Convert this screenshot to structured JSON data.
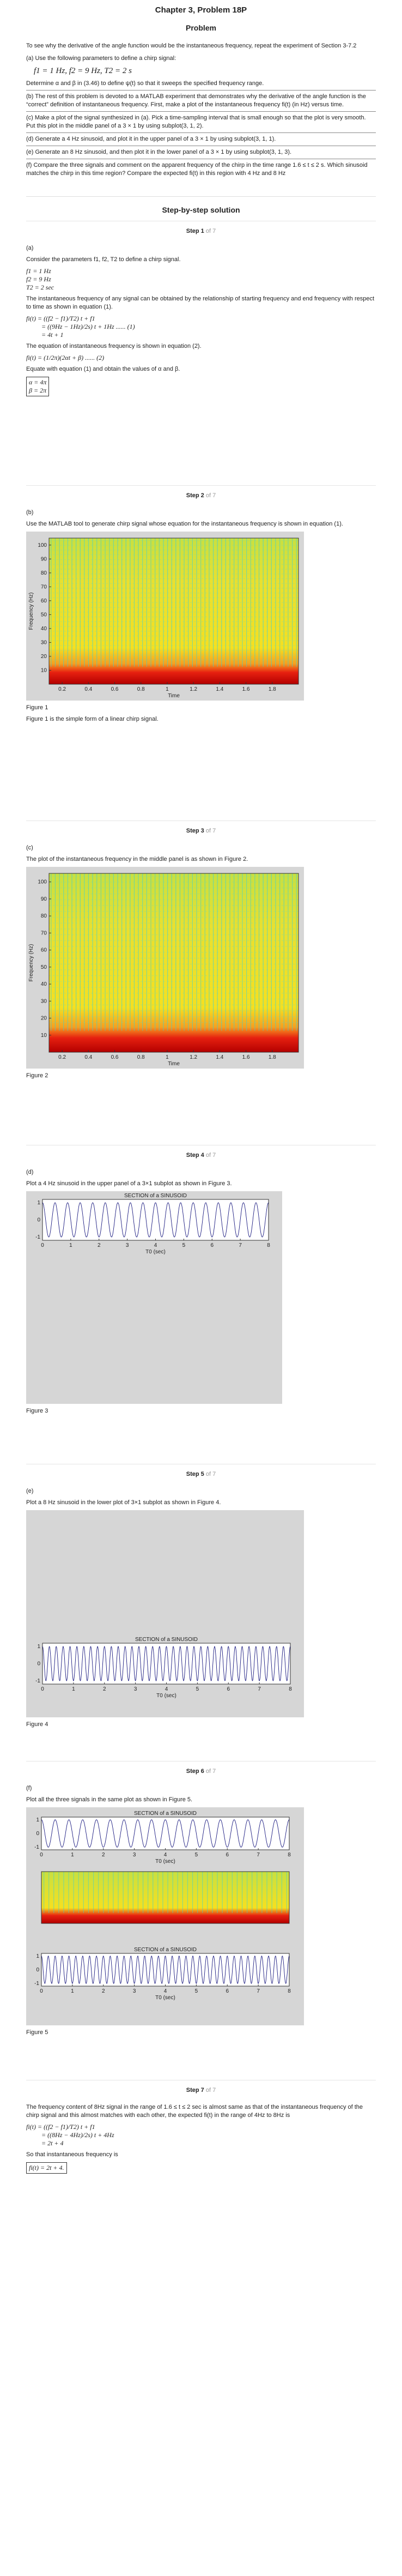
{
  "header": {
    "chapter": "Chapter 3, Problem 18P",
    "problem": "Problem"
  },
  "problem": {
    "intro": "To see why the derivative of the angle function would be the instantaneous frequency, repeat the experiment of Section 3-7.2",
    "a1": "(a) Use the following parameters to define a chirp signal:",
    "a_eq": "f1 = 1 Hz,   f2 = 9 Hz,   T2 = 2 s",
    "a2": "Determine α and β in (3.46) to define ψ(t) so that it sweeps the specified frequency range.",
    "b": "(b) The rest of this problem is devoted to a MATLAB experiment that demonstrates why the derivative of the angle function is the “correct” definition of instantaneous frequency. First, make a plot of the instantaneous frequency fi(t) (in Hz) versus time.",
    "c": "(c) Make a plot of the signal synthesized in (a). Pick a time-sampling interval that is small enough so that the plot is very smooth. Put this plot in the middle panel of a 3 × 1 by using subplot(3, 1, 2).",
    "d": "(d) Generate a 4 Hz sinusoid, and plot it in the upper panel of a 3 × 1 by using subplot(3, 1, 1).",
    "e": "(e) Generate an 8 Hz sinusoid, and then plot it in the lower panel of a 3 × 1 by using subplot(3, 1, 3).",
    "f": "(f) Compare the three signals and comment on the apparent frequency of the chirp in the time range 1.6 ≤ t ≤ 2 s. Which sinusoid matches the chirp in this time region? Compare the expected fi(t) in this region with 4 Hz and 8 Hz"
  },
  "solution_title": "Step-by-step solution",
  "steps": [
    {
      "num": "Step 1",
      "of": "of 7",
      "label": "(a)",
      "t1": "Consider the parameters  f1, f2, T2 to define a chirp signal.",
      "p1": "f1 = 1 Hz",
      "p2": "f2 = 9 Hz",
      "p3": "T2 = 2 sec",
      "t2": "The instantaneous frequency of any signal can be obtained by the relationship of starting frequency and end frequency with respect to time as shown in equation (1).",
      "e1a": "fi(t) = ((f2 − f1)/T2) t + f1",
      "e1b": "= ((9Hz − 1Hz)/2s) t + 1Hz   ...... (1)",
      "e1c": "= 4t + 1",
      "t3": "The equation of instantaneous frequency is shown in equation (2).",
      "e2": "fi(t) = (1/2π)(2αt + β)   ...... (2)",
      "t4": "Equate with equation (1) and obtain the values of  α and β.",
      "ans1": "α = 4π",
      "ans2": "β = 2π"
    },
    {
      "num": "Step 2",
      "of": "of 7",
      "label": "(b)",
      "t1": "Use the MATLAB tool to generate chirp signal whose equation for the instantaneous frequency is shown in equation (1).",
      "fig": "Figure 1",
      "note": "Figure 1 is the simple form of a linear chirp signal."
    },
    {
      "num": "Step 3",
      "of": "of 7",
      "label": "(c)",
      "t1": "The plot of the instantaneous frequency in the middle panel is as shown in Figure 2.",
      "fig": "Figure 2"
    },
    {
      "num": "Step 4",
      "of": "of 7",
      "label": "(d)",
      "t1": "Plot a 4 Hz sinusoid in the upper panel of a 3×1 subplot as shown in Figure 3.",
      "fig": "Figure 3"
    },
    {
      "num": "Step 5",
      "of": "of 7",
      "label": "(e)",
      "t1": "Plot a 8 Hz sinusoid in the lower plot of 3×1 subplot as shown in Figure 4.",
      "fig": "Figure 4"
    },
    {
      "num": "Step 6",
      "of": "of 7",
      "label": "(f)",
      "t1": "Plot all the three signals in the same plot as shown in Figure 5.",
      "fig": "Figure 5"
    },
    {
      "num": "Step 7",
      "of": "of 7",
      "t1": "The frequency content of 8Hz signal in the range of  1.6 ≤ t ≤ 2  sec is almost same as that of the instantaneous frequency of the chirp signal and this almost matches with each other, the expected  fi(t)  in the range of 4Hz to 8Hz is",
      "e1a": "fi(t) = ((f2 − f1)/T2) t + f1",
      "e1b": "= ((8Hz − 4Hz)/2s) t + 4Hz",
      "e1c": "= 2t + 4",
      "t2": "So that instantaneous frequency is",
      "ans": "fi(t) = 2t + 4."
    }
  ],
  "plots": {
    "spectro": {
      "yticks": [
        "100",
        "90",
        "80",
        "70",
        "60",
        "50",
        "40",
        "30",
        "20",
        "10"
      ],
      "xticks": [
        "0.2",
        "0.4",
        "0.6",
        "0.8",
        "1",
        "1.2",
        "1.4",
        "1.6",
        "1.8"
      ],
      "ylabel": "Frequency (Hz)",
      "xlabel": "Time"
    },
    "sinusoid": {
      "title": "SECTION of a SINUSOID",
      "yticks": [
        "1",
        "0",
        "-1"
      ],
      "xticks": [
        "0",
        "1",
        "2",
        "3",
        "4",
        "5",
        "6",
        "7",
        "8"
      ],
      "xlabel": "T0 (sec)"
    }
  },
  "colors": {
    "spectro_low": "#b30000",
    "spectro_mid": "#f5e020",
    "spectro_cyan": "#2fd0e0",
    "sinus_line": "#1a1a80",
    "panel_bg": "#d6d6d6"
  }
}
